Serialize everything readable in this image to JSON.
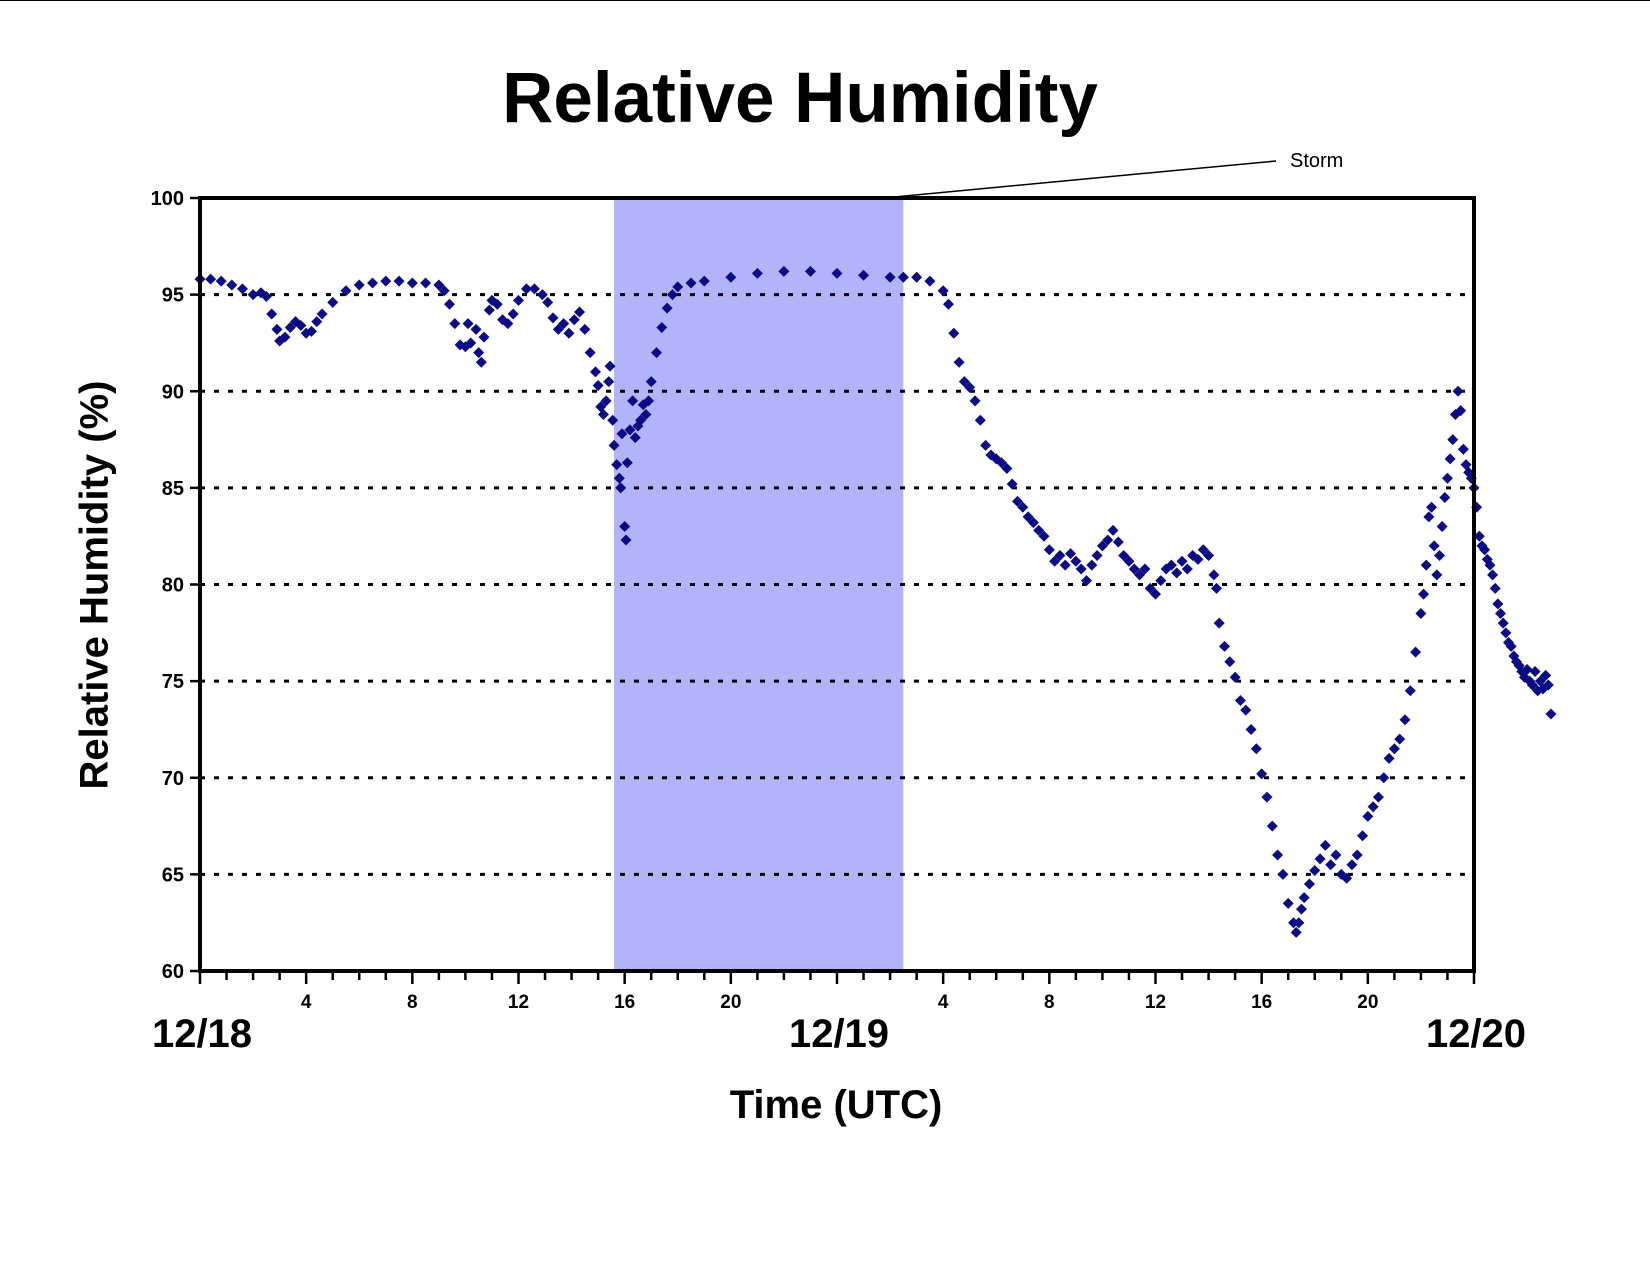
{
  "chart_data": {
    "type": "scatter",
    "title": "Relative Humidity",
    "xlabel": "Time (UTC)",
    "ylabel": "Relative Humidity (%)",
    "ylim": [
      60,
      100
    ],
    "yticks": [
      60,
      65,
      70,
      75,
      80,
      85,
      90,
      95,
      100
    ],
    "xlim_hours": [
      0,
      48
    ],
    "x_tick_labels": [
      {
        "hour": 4,
        "label": "4"
      },
      {
        "hour": 8,
        "label": "8"
      },
      {
        "hour": 12,
        "label": "12"
      },
      {
        "hour": 16,
        "label": "16"
      },
      {
        "hour": 20,
        "label": "20"
      },
      {
        "hour": 28,
        "label": "4"
      },
      {
        "hour": 32,
        "label": "8"
      },
      {
        "hour": 36,
        "label": "12"
      },
      {
        "hour": 40,
        "label": "16"
      },
      {
        "hour": 44,
        "label": "20"
      }
    ],
    "date_labels": [
      {
        "hour": 0,
        "label": "12/18"
      },
      {
        "hour": 24,
        "label": "12/19"
      },
      {
        "hour": 48,
        "label": "12/20"
      }
    ],
    "grid": "horizontal dotted",
    "annotation": {
      "text": "Storm",
      "x_start": 15.6,
      "x_end": 26.5
    },
    "colors": {
      "series": "#0b0b85",
      "storm_band": "#b3b3fa"
    },
    "series": [
      {
        "marker": "diamond",
        "points": [
          [
            0.0,
            95.8
          ],
          [
            0.4,
            95.8
          ],
          [
            0.8,
            95.7
          ],
          [
            1.2,
            95.5
          ],
          [
            1.6,
            95.3
          ],
          [
            2.0,
            95.0
          ],
          [
            2.3,
            95.1
          ],
          [
            2.5,
            94.9
          ],
          [
            2.7,
            94.0
          ],
          [
            2.9,
            93.2
          ],
          [
            3.0,
            92.6
          ],
          [
            3.2,
            92.8
          ],
          [
            3.4,
            93.3
          ],
          [
            3.6,
            93.6
          ],
          [
            3.8,
            93.4
          ],
          [
            4.0,
            93.0
          ],
          [
            4.2,
            93.1
          ],
          [
            4.4,
            93.6
          ],
          [
            4.6,
            94.0
          ],
          [
            5.0,
            94.6
          ],
          [
            5.5,
            95.2
          ],
          [
            6.0,
            95.5
          ],
          [
            6.5,
            95.6
          ],
          [
            7.0,
            95.7
          ],
          [
            7.5,
            95.7
          ],
          [
            8.0,
            95.6
          ],
          [
            8.5,
            95.6
          ],
          [
            9.0,
            95.5
          ],
          [
            9.2,
            95.2
          ],
          [
            9.4,
            94.5
          ],
          [
            9.6,
            93.5
          ],
          [
            9.8,
            92.4
          ],
          [
            10.0,
            92.3
          ],
          [
            10.1,
            93.5
          ],
          [
            10.2,
            92.5
          ],
          [
            10.4,
            93.2
          ],
          [
            10.5,
            92.0
          ],
          [
            10.6,
            91.5
          ],
          [
            10.7,
            92.8
          ],
          [
            10.9,
            94.2
          ],
          [
            11.0,
            94.7
          ],
          [
            11.2,
            94.5
          ],
          [
            11.4,
            93.7
          ],
          [
            11.6,
            93.5
          ],
          [
            11.8,
            94.0
          ],
          [
            12.0,
            94.7
          ],
          [
            12.3,
            95.3
          ],
          [
            12.6,
            95.3
          ],
          [
            12.9,
            95.0
          ],
          [
            13.1,
            94.6
          ],
          [
            13.3,
            93.8
          ],
          [
            13.5,
            93.2
          ],
          [
            13.7,
            93.5
          ],
          [
            13.9,
            93.0
          ],
          [
            14.1,
            93.7
          ],
          [
            14.3,
            94.1
          ],
          [
            14.5,
            93.2
          ],
          [
            14.7,
            92.0
          ],
          [
            14.9,
            91.0
          ],
          [
            15.0,
            90.3
          ],
          [
            15.1,
            89.2
          ],
          [
            15.2,
            88.8
          ],
          [
            15.3,
            89.5
          ],
          [
            15.4,
            90.5
          ],
          [
            15.45,
            91.3
          ],
          [
            15.55,
            88.5
          ],
          [
            15.6,
            87.2
          ],
          [
            15.7,
            86.2
          ],
          [
            15.8,
            85.5
          ],
          [
            15.85,
            85.0
          ],
          [
            15.9,
            87.8
          ],
          [
            16.0,
            83.0
          ],
          [
            16.05,
            82.3
          ],
          [
            16.1,
            86.3
          ],
          [
            16.2,
            88.0
          ],
          [
            16.3,
            89.5
          ],
          [
            16.4,
            87.6
          ],
          [
            16.5,
            88.2
          ],
          [
            16.6,
            88.5
          ],
          [
            16.7,
            89.3
          ],
          [
            16.8,
            88.8
          ],
          [
            16.9,
            89.5
          ],
          [
            17.0,
            90.5
          ],
          [
            17.2,
            92.0
          ],
          [
            17.4,
            93.3
          ],
          [
            17.6,
            94.3
          ],
          [
            17.8,
            95.0
          ],
          [
            18.0,
            95.4
          ],
          [
            18.5,
            95.6
          ],
          [
            19.0,
            95.7
          ],
          [
            20.0,
            95.9
          ],
          [
            21.0,
            96.1
          ],
          [
            22.0,
            96.2
          ],
          [
            23.0,
            96.2
          ],
          [
            24.0,
            96.1
          ],
          [
            25.0,
            96.0
          ],
          [
            26.0,
            95.9
          ],
          [
            26.5,
            95.9
          ],
          [
            27.0,
            95.9
          ],
          [
            27.5,
            95.7
          ],
          [
            28.0,
            95.2
          ],
          [
            28.2,
            94.5
          ],
          [
            28.4,
            93.0
          ],
          [
            28.6,
            91.5
          ],
          [
            28.8,
            90.5
          ],
          [
            29.0,
            90.2
          ],
          [
            29.2,
            89.5
          ],
          [
            29.4,
            88.5
          ],
          [
            29.6,
            87.2
          ],
          [
            29.8,
            86.7
          ],
          [
            30.0,
            86.5
          ],
          [
            30.2,
            86.3
          ],
          [
            30.4,
            86.0
          ],
          [
            30.6,
            85.2
          ],
          [
            30.8,
            84.3
          ],
          [
            31.0,
            84.0
          ],
          [
            31.2,
            83.5
          ],
          [
            31.4,
            83.2
          ],
          [
            31.6,
            82.8
          ],
          [
            31.8,
            82.5
          ],
          [
            32.0,
            81.8
          ],
          [
            32.2,
            81.2
          ],
          [
            32.4,
            81.5
          ],
          [
            32.6,
            81.0
          ],
          [
            32.8,
            81.6
          ],
          [
            33.0,
            81.2
          ],
          [
            33.2,
            80.8
          ],
          [
            33.4,
            80.2
          ],
          [
            33.6,
            81.0
          ],
          [
            33.8,
            81.5
          ],
          [
            34.0,
            82.0
          ],
          [
            34.2,
            82.3
          ],
          [
            34.4,
            82.8
          ],
          [
            34.6,
            82.2
          ],
          [
            34.8,
            81.5
          ],
          [
            35.0,
            81.2
          ],
          [
            35.2,
            80.8
          ],
          [
            35.4,
            80.5
          ],
          [
            35.6,
            80.8
          ],
          [
            35.8,
            79.8
          ],
          [
            36.0,
            79.5
          ],
          [
            36.2,
            80.2
          ],
          [
            36.4,
            80.8
          ],
          [
            36.6,
            81.0
          ],
          [
            36.8,
            80.6
          ],
          [
            37.0,
            81.2
          ],
          [
            37.2,
            80.8
          ],
          [
            37.4,
            81.5
          ],
          [
            37.6,
            81.3
          ],
          [
            37.8,
            81.8
          ],
          [
            38.0,
            81.5
          ],
          [
            38.2,
            80.5
          ],
          [
            38.3,
            79.8
          ],
          [
            38.4,
            78.0
          ],
          [
            38.6,
            76.8
          ],
          [
            38.8,
            76.0
          ],
          [
            39.0,
            75.2
          ],
          [
            39.2,
            74.0
          ],
          [
            39.4,
            73.5
          ],
          [
            39.6,
            72.5
          ],
          [
            39.8,
            71.5
          ],
          [
            40.0,
            70.2
          ],
          [
            40.2,
            69.0
          ],
          [
            40.4,
            67.5
          ],
          [
            40.6,
            66.0
          ],
          [
            40.8,
            65.0
          ],
          [
            41.0,
            63.5
          ],
          [
            41.2,
            62.5
          ],
          [
            41.3,
            62.0
          ],
          [
            41.4,
            62.5
          ],
          [
            41.5,
            63.2
          ],
          [
            41.6,
            63.8
          ],
          [
            41.8,
            64.5
          ],
          [
            42.0,
            65.2
          ],
          [
            42.2,
            65.8
          ],
          [
            42.4,
            66.5
          ],
          [
            42.6,
            65.5
          ],
          [
            42.8,
            66.0
          ],
          [
            43.0,
            65.0
          ],
          [
            43.2,
            64.8
          ],
          [
            43.4,
            65.5
          ],
          [
            43.6,
            66.0
          ],
          [
            43.8,
            67.0
          ],
          [
            44.0,
            68.0
          ],
          [
            44.2,
            68.5
          ],
          [
            44.4,
            69.0
          ],
          [
            44.6,
            70.0
          ],
          [
            44.8,
            71.0
          ],
          [
            45.0,
            71.5
          ],
          [
            45.2,
            72.0
          ],
          [
            45.4,
            73.0
          ],
          [
            45.6,
            74.5
          ],
          [
            45.8,
            76.5
          ],
          [
            46.0,
            78.5
          ],
          [
            46.1,
            79.5
          ],
          [
            46.2,
            81.0
          ],
          [
            46.3,
            83.5
          ],
          [
            46.4,
            84.0
          ],
          [
            46.5,
            82.0
          ],
          [
            46.6,
            80.5
          ],
          [
            46.7,
            81.5
          ],
          [
            46.8,
            83.0
          ],
          [
            46.9,
            84.5
          ],
          [
            47.0,
            85.5
          ],
          [
            47.1,
            86.5
          ],
          [
            47.2,
            87.5
          ],
          [
            47.3,
            88.8
          ],
          [
            47.4,
            90.0
          ],
          [
            47.5,
            89.0
          ],
          [
            47.6,
            87.0
          ],
          [
            47.7,
            86.2
          ],
          [
            47.8,
            85.8
          ],
          [
            47.9,
            85.5
          ],
          [
            48.0,
            85.0
          ],
          [
            48.1,
            84.0
          ],
          [
            48.2,
            82.5
          ],
          [
            48.3,
            82.0
          ],
          [
            48.4,
            81.8
          ],
          [
            48.5,
            81.3
          ],
          [
            48.6,
            81.0
          ],
          [
            48.7,
            80.5
          ],
          [
            48.8,
            79.8
          ],
          [
            48.9,
            79.0
          ],
          [
            49.0,
            78.5
          ],
          [
            49.1,
            78.0
          ],
          [
            49.2,
            77.5
          ],
          [
            49.3,
            77.0
          ],
          [
            49.4,
            76.8
          ],
          [
            49.5,
            76.3
          ],
          [
            49.6,
            76.0
          ],
          [
            49.7,
            75.8
          ],
          [
            49.8,
            75.5
          ],
          [
            49.9,
            75.2
          ],
          [
            50.0,
            75.6
          ],
          [
            50.1,
            75.0
          ],
          [
            50.2,
            74.8
          ],
          [
            50.3,
            75.5
          ],
          [
            50.4,
            74.5
          ],
          [
            50.5,
            75.0
          ],
          [
            50.6,
            74.6
          ],
          [
            50.7,
            75.3
          ],
          [
            50.8,
            74.8
          ],
          [
            50.9,
            73.3
          ]
        ]
      }
    ]
  }
}
